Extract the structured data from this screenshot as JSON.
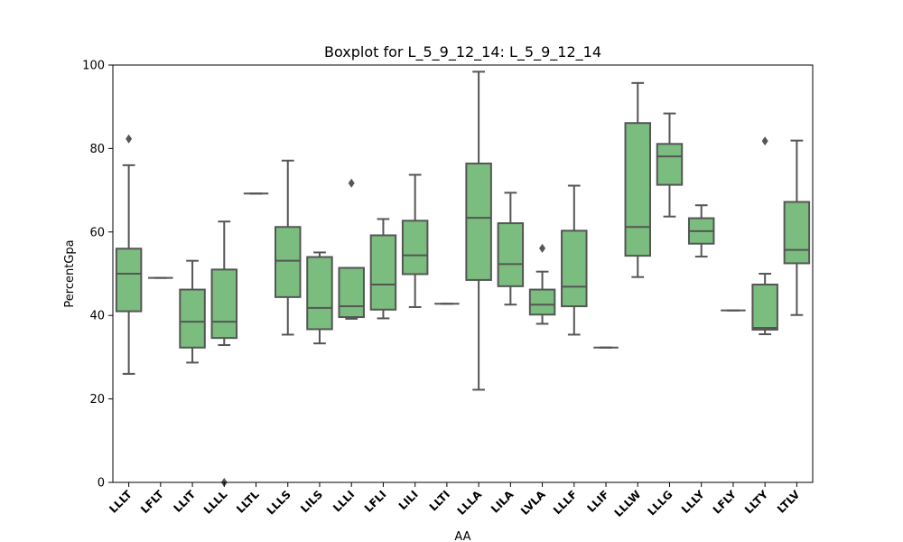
{
  "chart_data": {
    "type": "boxplot",
    "title": "Boxplot for L_5_9_12_14: L_5_9_12_14",
    "xlabel": "AA",
    "ylabel": "PercentGpa",
    "ylim": [
      0,
      100
    ],
    "yticks": [
      0,
      20,
      40,
      60,
      80,
      100
    ],
    "grid": false,
    "box_color": "#7abd7e",
    "line_color": "#555555",
    "categories": [
      "LLLT",
      "LFLT",
      "LLIT",
      "LLLL",
      "LLTL",
      "LLLS",
      "LILS",
      "LLLI",
      "LFLI",
      "LILI",
      "LLTI",
      "LLLA",
      "LILA",
      "LVLA",
      "LLLF",
      "LLIF",
      "LLLW",
      "LLLG",
      "LLLY",
      "LFLY",
      "LLTY",
      "LTLV"
    ],
    "boxes": [
      {
        "category": "LLLT",
        "whislo": 26.0,
        "q1": 41.0,
        "med": 50.0,
        "q3": 56.0,
        "whishi": 76.0,
        "fliers": [
          82.3
        ]
      },
      {
        "category": "LFLT",
        "whislo": 49.0,
        "q1": 49.0,
        "med": 49.0,
        "q3": 49.0,
        "whishi": 49.0,
        "fliers": []
      },
      {
        "category": "LLIT",
        "whislo": 28.7,
        "q1": 32.3,
        "med": 38.5,
        "q3": 46.2,
        "whishi": 53.1,
        "fliers": []
      },
      {
        "category": "LLLL",
        "whislo": 32.9,
        "q1": 34.6,
        "med": 38.5,
        "q3": 51.0,
        "whishi": 62.5,
        "fliers": [
          0.0
        ]
      },
      {
        "category": "LLTL",
        "whislo": 69.2,
        "q1": 69.2,
        "med": 69.2,
        "q3": 69.2,
        "whishi": 69.2,
        "fliers": []
      },
      {
        "category": "LLLS",
        "whislo": 35.4,
        "q1": 44.4,
        "med": 53.1,
        "q3": 61.2,
        "whishi": 77.1,
        "fliers": []
      },
      {
        "category": "LILS",
        "whislo": 33.3,
        "q1": 36.7,
        "med": 41.8,
        "q3": 54.0,
        "whishi": 55.1,
        "fliers": []
      },
      {
        "category": "LLLI",
        "whislo": 39.2,
        "q1": 39.6,
        "med": 42.2,
        "q3": 51.4,
        "whishi": 51.4,
        "fliers": [
          71.7
        ]
      },
      {
        "category": "LFLI",
        "whislo": 39.3,
        "q1": 41.4,
        "med": 47.4,
        "q3": 59.2,
        "whishi": 63.1,
        "fliers": []
      },
      {
        "category": "LILI",
        "whislo": 42.0,
        "q1": 49.9,
        "med": 54.4,
        "q3": 62.7,
        "whishi": 73.7,
        "fliers": []
      },
      {
        "category": "LLTI",
        "whislo": 42.8,
        "q1": 42.8,
        "med": 42.8,
        "q3": 42.8,
        "whishi": 42.8,
        "fliers": []
      },
      {
        "category": "LLLA",
        "whislo": 22.2,
        "q1": 48.5,
        "med": 63.4,
        "q3": 76.4,
        "whishi": 98.4,
        "fliers": []
      },
      {
        "category": "LILA",
        "whislo": 42.6,
        "q1": 47.0,
        "med": 52.3,
        "q3": 62.1,
        "whishi": 69.4,
        "fliers": []
      },
      {
        "category": "LVLA",
        "whislo": 38.0,
        "q1": 40.2,
        "med": 42.6,
        "q3": 46.2,
        "whishi": 50.5,
        "fliers": [
          56.1
        ]
      },
      {
        "category": "LLLF",
        "whislo": 35.4,
        "q1": 42.2,
        "med": 46.9,
        "q3": 60.3,
        "whishi": 71.1,
        "fliers": []
      },
      {
        "category": "LLIF",
        "whislo": 32.3,
        "q1": 32.3,
        "med": 32.3,
        "q3": 32.3,
        "whishi": 32.3,
        "fliers": []
      },
      {
        "category": "LLLW",
        "whislo": 49.2,
        "q1": 54.3,
        "med": 61.2,
        "q3": 86.1,
        "whishi": 95.7,
        "fliers": []
      },
      {
        "category": "LLLG",
        "whislo": 63.7,
        "q1": 71.3,
        "med": 78.1,
        "q3": 81.1,
        "whishi": 88.4,
        "fliers": []
      },
      {
        "category": "LLLY",
        "whislo": 54.1,
        "q1": 57.2,
        "med": 60.2,
        "q3": 63.3,
        "whishi": 66.4,
        "fliers": []
      },
      {
        "category": "LFLY",
        "whislo": 41.2,
        "q1": 41.2,
        "med": 41.2,
        "q3": 41.2,
        "whishi": 41.2,
        "fliers": []
      },
      {
        "category": "LLTY",
        "whislo": 35.5,
        "q1": 36.6,
        "med": 37.0,
        "q3": 47.4,
        "whishi": 50.0,
        "fliers": [
          81.8
        ]
      },
      {
        "category": "LTLV",
        "whislo": 40.1,
        "q1": 52.5,
        "med": 55.7,
        "q3": 67.2,
        "whishi": 81.9,
        "fliers": []
      }
    ]
  }
}
